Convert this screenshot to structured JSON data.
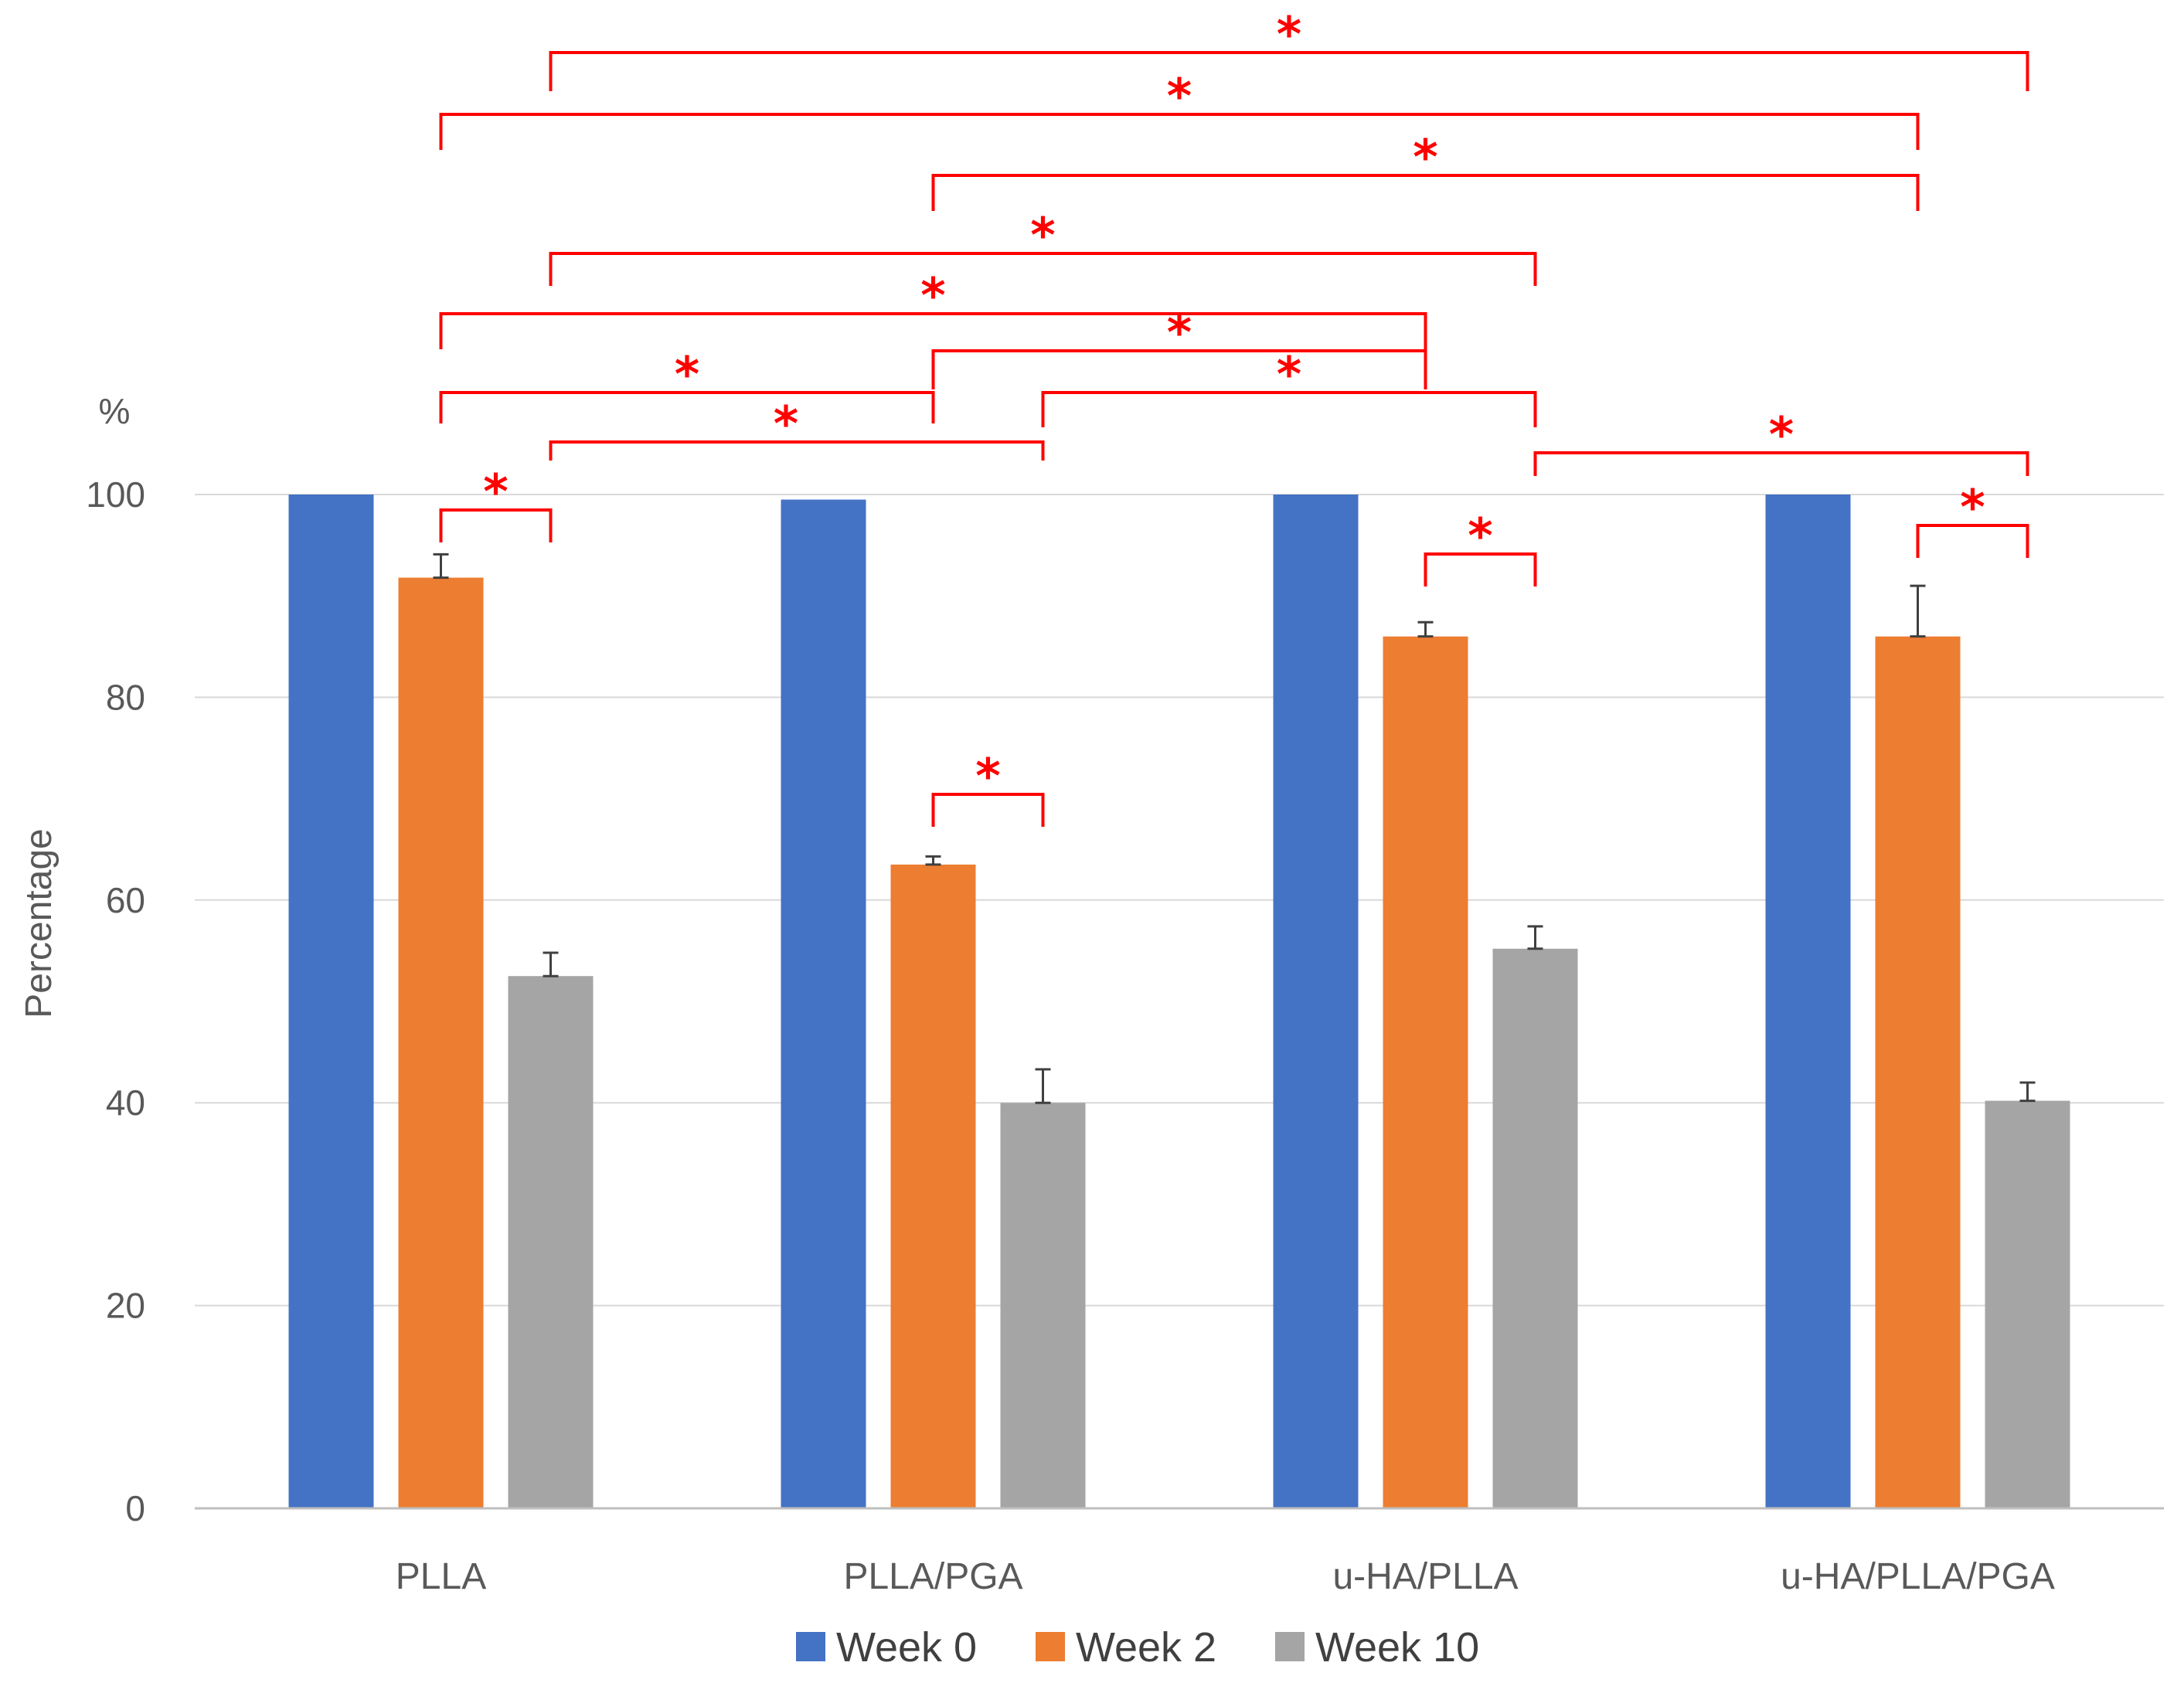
{
  "chart_data": {
    "type": "bar",
    "title": "",
    "xlabel": "",
    "ylabel": "Percentage",
    "y_unit": "%",
    "ylim": [
      0,
      100
    ],
    "yticks": [
      "0",
      "20",
      "40",
      "60",
      "80",
      "100"
    ],
    "categories": [
      "PLLA",
      "PLLA/PGA",
      "u-HA/PLLA",
      "u-HA/PLLA/PGA"
    ],
    "series": [
      {
        "name": "Week 0",
        "color": "#4472C4",
        "values": [
          100,
          99.5,
          100,
          100
        ],
        "errors": [
          0,
          0,
          0,
          0
        ]
      },
      {
        "name": "Week 2",
        "color": "#ED7D31",
        "values": [
          91.8,
          63.5,
          86.0,
          86.0
        ],
        "errors": [
          2.3,
          0.8,
          1.4,
          5.0
        ]
      },
      {
        "name": "Week 10",
        "color": "#A5A5A5",
        "values": [
          52.5,
          40.0,
          55.2,
          40.2
        ],
        "errors": [
          2.3,
          3.3,
          2.2,
          1.8
        ]
      }
    ],
    "legend_position": "bottom",
    "grid": true,
    "significance": {
      "marker": "*",
      "color": "#FF0000",
      "brackets": [
        {
          "from": [
            0,
            1
          ],
          "to": [
            0,
            2
          ]
        },
        {
          "from": [
            1,
            1
          ],
          "to": [
            1,
            2
          ]
        },
        {
          "from": [
            2,
            1
          ],
          "to": [
            2,
            2
          ]
        },
        {
          "from": [
            3,
            1
          ],
          "to": [
            3,
            2
          ]
        },
        {
          "from": [
            0,
            2
          ],
          "to": [
            1,
            2
          ]
        },
        {
          "from": [
            0,
            1
          ],
          "to": [
            1,
            1
          ]
        },
        {
          "from": [
            1,
            2
          ],
          "to": [
            2,
            2
          ]
        },
        {
          "from": [
            1,
            1
          ],
          "to": [
            2,
            1
          ]
        },
        {
          "from": [
            2,
            2
          ],
          "to": [
            3,
            2
          ]
        },
        {
          "from": [
            0,
            1
          ],
          "to": [
            2,
            1
          ]
        },
        {
          "from": [
            0,
            2
          ],
          "to": [
            2,
            2
          ]
        },
        {
          "from": [
            1,
            1
          ],
          "to": [
            3,
            1
          ]
        },
        {
          "from": [
            0,
            1
          ],
          "to": [
            3,
            1
          ]
        },
        {
          "from": [
            0,
            2
          ],
          "to": [
            3,
            2
          ]
        }
      ]
    }
  }
}
